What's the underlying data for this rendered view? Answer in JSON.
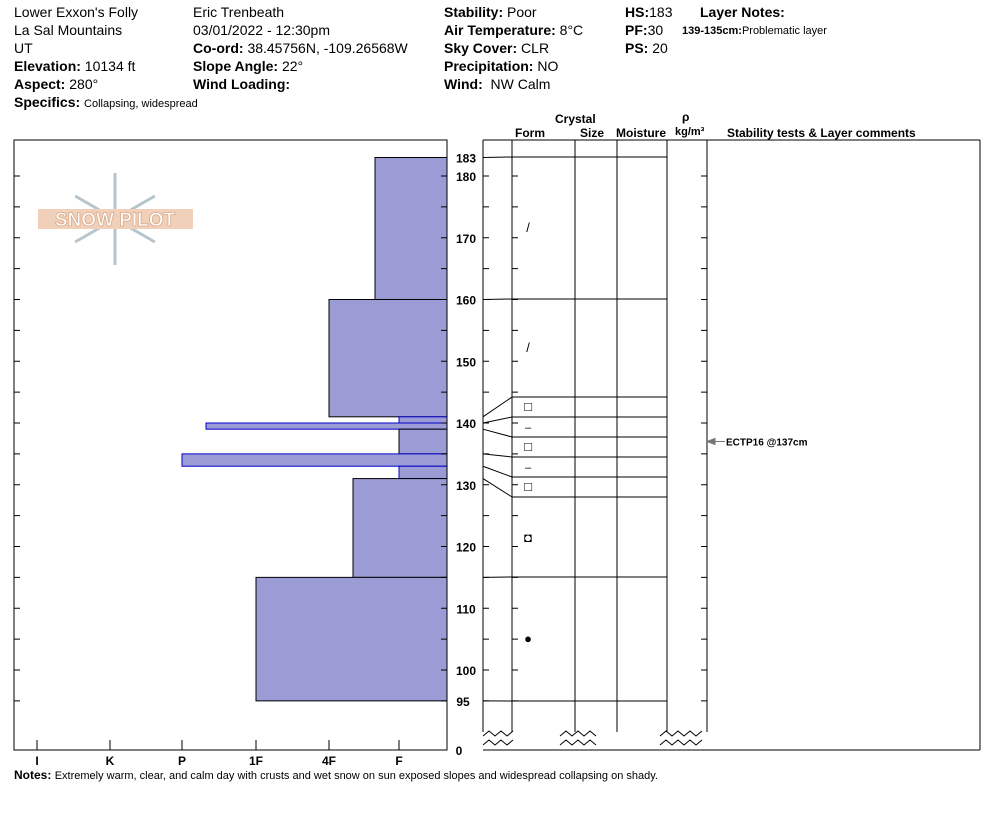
{
  "header": {
    "location": "Lower Exxon's Folly",
    "range": "La Sal Mountains",
    "state": "UT",
    "elevation_label": "Elevation:",
    "elevation": "10134 ft",
    "aspect_label": "Aspect:",
    "aspect": "280°",
    "specifics_label": "Specifics:",
    "specifics": "Collapsing, widespread",
    "observer": "Eric Trenbeath",
    "datetime": "03/01/2022 - 12:30pm",
    "coord_label": "Co-ord:",
    "coord": "38.45756N, -109.26568W",
    "slope_label": "Slope Angle:",
    "slope": "22°",
    "wind_loading_label": "Wind Loading:",
    "stability_label": "Stability:",
    "stability": "Poor",
    "air_temp_label": "Air Temperature:",
    "air_temp": "8°C",
    "sky_label": "Sky Cover:",
    "sky": "CLR",
    "precip_label": "Precipitation:",
    "precip": "NO",
    "wind_label": "Wind:",
    "wind": "NW Calm",
    "hs_label": "HS:",
    "hs": "183",
    "pf_label": "PF:",
    "pf": "30",
    "ps_label": "PS:",
    "ps": "20",
    "layer_notes_label": "Layer Notes:",
    "layer_note_range": "139-135cm:",
    "layer_note": "Problematic layer"
  },
  "columns": {
    "crystal": "Crystal",
    "form": "Form",
    "size": "Size",
    "moisture": "Moisture",
    "rho": "ρ",
    "density": "kg/m³",
    "tests": "Stability tests & Layer comments"
  },
  "logo": "SNOW PILOT",
  "test": {
    "label": "ECTP16 @137cm",
    "depth": 137
  },
  "notes_label": "Notes:",
  "notes": "Extremely warm, clear, and calm day with crusts and wet snow on sun exposed slopes and widespread collapsing on shady.",
  "colors": {
    "hardness_fill": "#9b9bd5",
    "hardness_edge": "#0000cc"
  },
  "chart_data": {
    "type": "bar",
    "orientation": "horizontal",
    "ylabel": "",
    "y_ticks": [
      100,
      110,
      120,
      130,
      140,
      150,
      160,
      170,
      180
    ],
    "y_extra_labels": [
      "183",
      "95",
      "0"
    ],
    "ylim": [
      95,
      183
    ],
    "x_ticks": [
      "I",
      "K",
      "P",
      "1F",
      "4F",
      "F"
    ],
    "layers": [
      {
        "top": 183,
        "bottom": 160,
        "hardness": "F+",
        "form": "/"
      },
      {
        "top": 160,
        "bottom": 141,
        "hardness": "4F",
        "form": "/"
      },
      {
        "top": 141,
        "bottom": 140,
        "hardness": "F",
        "form": "□"
      },
      {
        "top": 140,
        "bottom": 139,
        "hardness": "P-",
        "form": "–"
      },
      {
        "top": 139,
        "bottom": 135,
        "hardness": "F",
        "form": "□"
      },
      {
        "top": 135,
        "bottom": 133,
        "hardness": "P",
        "form": "–"
      },
      {
        "top": 133,
        "bottom": 131,
        "hardness": "F",
        "form": "□"
      },
      {
        "top": 131,
        "bottom": 115,
        "hardness": "4F-",
        "form": "◘"
      },
      {
        "top": 115,
        "bottom": 95,
        "hardness": "1F",
        "form": "●"
      }
    ]
  }
}
